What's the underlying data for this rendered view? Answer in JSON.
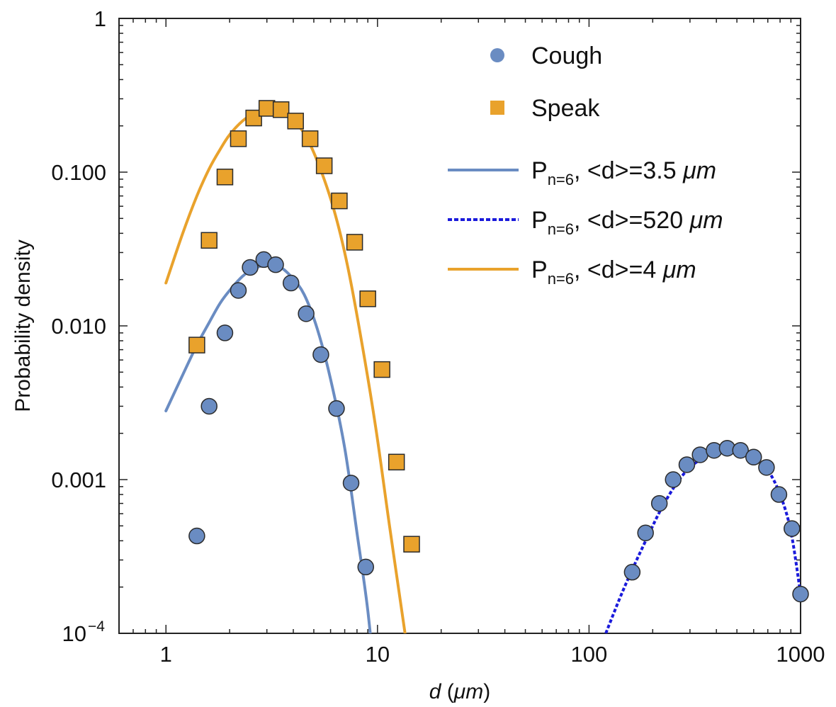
{
  "chart_data": {
    "type": "scatter",
    "xscale": "log",
    "yscale": "log",
    "xlim": [
      0.6,
      1000
    ],
    "ylim": [
      0.0001,
      1
    ],
    "xlabel": "d (μm)",
    "ylabel": "Probability density",
    "x_ticks": [
      {
        "value": 1,
        "label": "1"
      },
      {
        "value": 10,
        "label": "10"
      },
      {
        "value": 100,
        "label": "100"
      },
      {
        "value": 1000,
        "label": "1000"
      }
    ],
    "y_ticks": [
      {
        "value": 0.0001,
        "label": "10",
        "sup": "−4"
      },
      {
        "value": 0.001,
        "label": "0.001",
        "sup": ""
      },
      {
        "value": 0.01,
        "label": "0.010",
        "sup": ""
      },
      {
        "value": 0.1,
        "label": "0.100",
        "sup": ""
      },
      {
        "value": 1,
        "label": "1",
        "sup": ""
      }
    ],
    "grid": false,
    "legend_position": "top-right",
    "colors": {
      "cough": "#6a8cc2",
      "speak": "#e9a22c",
      "fit_cough": "#6a8cc2",
      "fit_speak": "#e9a22c",
      "fit_large": "#1a1adb"
    },
    "series": [
      {
        "name": "Cough",
        "kind": "points",
        "marker": "circle",
        "color": "#6a8cc2",
        "x": [
          1.4,
          1.6,
          1.9,
          2.2,
          2.5,
          2.9,
          3.3,
          3.9,
          4.6,
          5.4,
          6.4,
          7.5,
          8.8,
          160,
          185,
          215,
          250,
          290,
          335,
          390,
          450,
          520,
          600,
          690,
          790,
          910,
          1000
        ],
        "y": [
          0.00043,
          0.003,
          0.009,
          0.017,
          0.024,
          0.027,
          0.025,
          0.019,
          0.012,
          0.0065,
          0.0029,
          0.00095,
          0.00027,
          0.00025,
          0.00045,
          0.0007,
          0.001,
          0.00125,
          0.00145,
          0.00155,
          0.0016,
          0.00155,
          0.0014,
          0.0012,
          0.0008,
          0.00048,
          0.00018
        ]
      },
      {
        "name": "Speak",
        "kind": "points",
        "marker": "square",
        "color": "#e9a22c",
        "x": [
          1.4,
          1.6,
          1.9,
          2.2,
          2.6,
          3.0,
          3.5,
          4.1,
          4.8,
          5.6,
          6.6,
          7.8,
          9.0,
          10.5,
          12.3,
          14.5
        ],
        "y": [
          0.0075,
          0.036,
          0.093,
          0.165,
          0.225,
          0.26,
          0.255,
          0.215,
          0.165,
          0.11,
          0.065,
          0.035,
          0.015,
          0.0052,
          0.0013,
          0.00038
        ]
      },
      {
        "name": "Pn=6, <d>=3.5 μm",
        "kind": "line",
        "style": "solid",
        "color": "#6a8cc2",
        "x": [
          1.0,
          1.2,
          1.4,
          1.6,
          1.8,
          2.0,
          2.3,
          2.6,
          3.0,
          3.4,
          3.9,
          4.5,
          5.2,
          6.0,
          7.0,
          8.0,
          9.0,
          10.0
        ],
        "y": [
          0.0028,
          0.0048,
          0.0075,
          0.0105,
          0.014,
          0.017,
          0.021,
          0.0235,
          0.025,
          0.0245,
          0.021,
          0.016,
          0.0095,
          0.0045,
          0.0016,
          0.00045,
          0.00014,
          3.2e-05
        ]
      },
      {
        "name": "Pn=6, <d>=520 μm",
        "kind": "line",
        "style": "dotted",
        "color": "#1a1adb",
        "x": [
          120,
          140,
          160,
          190,
          220,
          260,
          300,
          350,
          400,
          450,
          520,
          600,
          700,
          800,
          900,
          1000
        ],
        "y": [
          0.0001,
          0.00017,
          0.00026,
          0.00043,
          0.00065,
          0.00095,
          0.0012,
          0.0014,
          0.00155,
          0.0016,
          0.00155,
          0.0014,
          0.00115,
          0.0008,
          0.00046,
          0.00018
        ]
      },
      {
        "name": "Pn=6, <d>=4 μm",
        "kind": "line",
        "style": "solid",
        "color": "#e9a22c",
        "x": [
          1.0,
          1.2,
          1.4,
          1.6,
          1.8,
          2.0,
          2.3,
          2.6,
          3.0,
          3.5,
          4.0,
          4.6,
          5.3,
          6.2,
          7.2,
          8.4,
          9.8,
          11.4,
          13.5
        ],
        "y": [
          0.019,
          0.04,
          0.07,
          0.105,
          0.14,
          0.175,
          0.215,
          0.24,
          0.255,
          0.25,
          0.22,
          0.17,
          0.11,
          0.058,
          0.025,
          0.008,
          0.0022,
          0.0005,
          0.0001
        ]
      }
    ],
    "legend": [
      {
        "marker": "circle",
        "color": "#6a8cc2",
        "text": "Cough"
      },
      {
        "marker": "square",
        "color": "#e9a22c",
        "text": "Speak"
      },
      {
        "marker": "line",
        "style": "solid",
        "color": "#6a8cc2",
        "base": "P",
        "sub": "n=6",
        "text": ", <d>=3.5 ",
        "unit": "μm"
      },
      {
        "marker": "line",
        "style": "dotted",
        "color": "#1a1adb",
        "base": "P",
        "sub": "n=6",
        "text": ", <d>=520 ",
        "unit": "μm"
      },
      {
        "marker": "line",
        "style": "solid",
        "color": "#e9a22c",
        "base": "P",
        "sub": "n=6",
        "text": ", <d>=4 ",
        "unit": "μm"
      }
    ]
  }
}
